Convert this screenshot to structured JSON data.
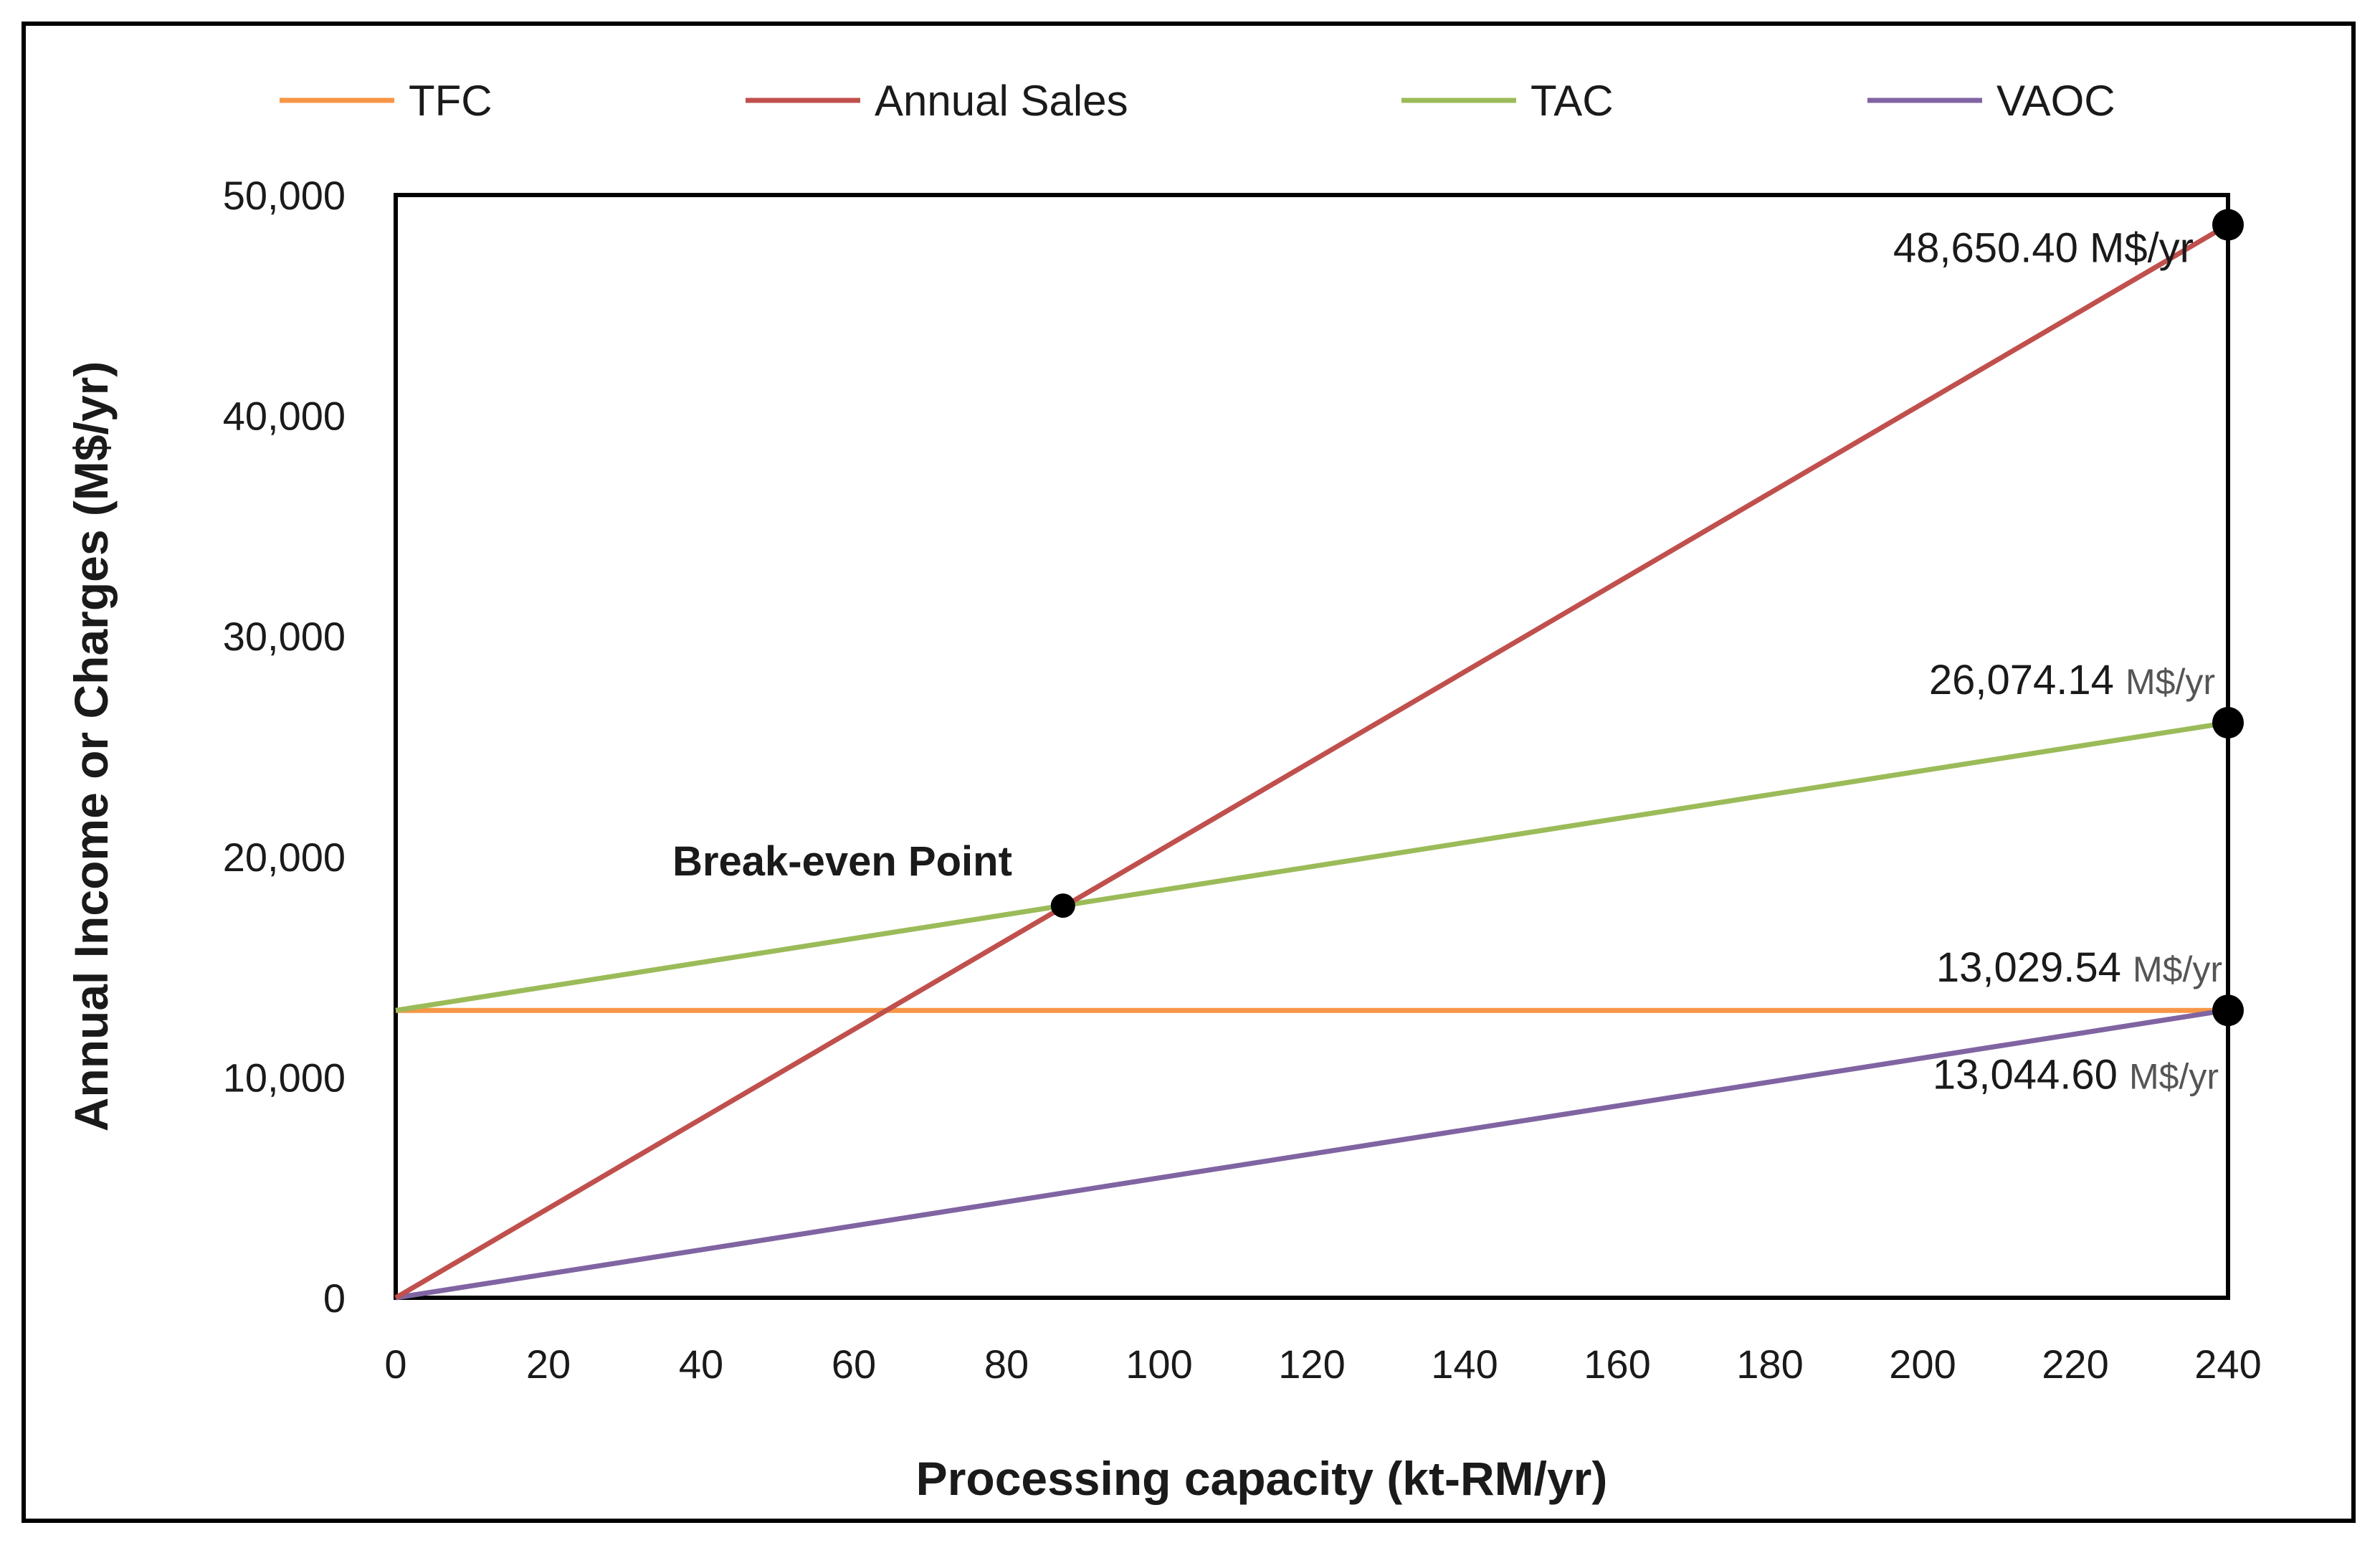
{
  "chart_data": {
    "type": "line",
    "xlabel": "Processing capacity (kt-RM/yr)",
    "ylabel": "Annual Income or Charges (M$/yr)",
    "xlim": [
      0,
      240
    ],
    "ylim": [
      0,
      50000
    ],
    "xticks": [
      "0",
      "20",
      "40",
      "60",
      "80",
      "100",
      "120",
      "140",
      "160",
      "180",
      "200",
      "220",
      "240"
    ],
    "yticks": [
      "0",
      "10,000",
      "20,000",
      "30,000",
      "40,000",
      "50,000"
    ],
    "x_tick_values": [
      0,
      20,
      40,
      60,
      80,
      100,
      120,
      140,
      160,
      180,
      200,
      220,
      240
    ],
    "y_tick_values": [
      0,
      10000,
      20000,
      30000,
      40000,
      50000
    ],
    "legend_position": "top",
    "grid": false,
    "series": [
      {
        "name": "TFC",
        "color": "#F79646",
        "x": [
          0,
          240
        ],
        "values": [
          13029.54,
          13029.54
        ]
      },
      {
        "name": "Annual Sales",
        "color": "#C0504D",
        "x": [
          0,
          240
        ],
        "values": [
          0,
          48650.4
        ]
      },
      {
        "name": "TAC",
        "color": "#9BBB59",
        "x": [
          0,
          240
        ],
        "values": [
          13029.54,
          26074.14
        ]
      },
      {
        "name": "VAOC",
        "color": "#8064A2",
        "x": [
          0,
          240
        ],
        "values": [
          0,
          13044.6
        ]
      }
    ],
    "markers": [
      {
        "x": 87.4,
        "y": 17780
      },
      {
        "x": 240,
        "y": 48650.4
      },
      {
        "x": 240,
        "y": 26074.14
      },
      {
        "x": 240,
        "y": 13029.54
      }
    ],
    "annotations": [
      {
        "id": "sales",
        "number": "48,650.40",
        "unit": "M$/yr",
        "x": 240,
        "y": 48650.4
      },
      {
        "id": "tac",
        "number": "26,074.14",
        "unit": "M$/yr",
        "x": 240,
        "y": 26074.14
      },
      {
        "id": "tfc",
        "number": "13,029.54",
        "unit": "M$/yr",
        "x": 240,
        "y": 13029.54
      },
      {
        "id": "vaoc",
        "number": "13,044.60",
        "unit": "M$/yr",
        "x": 240,
        "y": 13044.6
      }
    ],
    "break_even_label": "Break-even Point"
  }
}
